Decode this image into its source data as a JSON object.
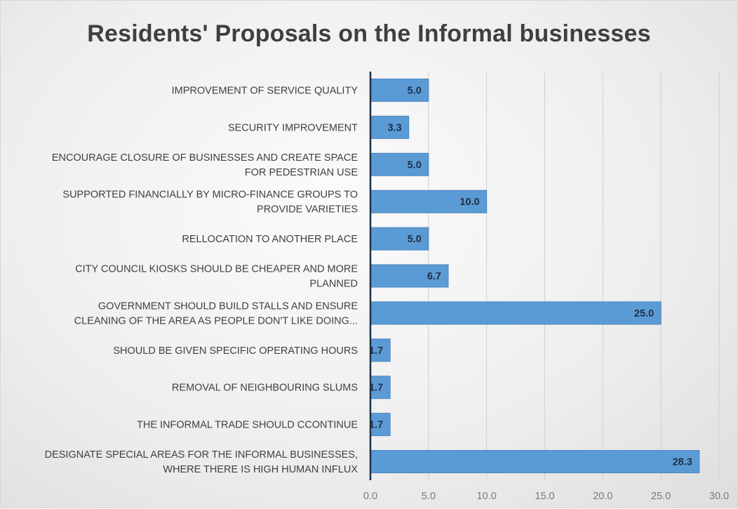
{
  "chart_data": {
    "type": "bar",
    "orientation": "horizontal",
    "title": "Residents' Proposals on the Informal businesses",
    "xlabel": "",
    "ylabel": "",
    "categories": [
      [
        "IMPROVEMENT OF SERVICE QUALITY"
      ],
      [
        "SECURITY IMPROVEMENT"
      ],
      [
        "ENCOURAGE CLOSURE OF BUSINESSES AND CREATE SPACE",
        "FOR PEDESTRIAN USE"
      ],
      [
        "SUPPORTED FINANCIALLY BY MICRO-FINANCE GROUPS TO",
        "PROVIDE VARIETIES"
      ],
      [
        "RELLOCATION TO ANOTHER PLACE"
      ],
      [
        "CITY COUNCIL KIOSKS SHOULD BE CHEAPER AND MORE",
        "PLANNED"
      ],
      [
        "GOVERNMENT SHOULD BUILD STALLS  AND ENSURE",
        "CLEANING OF THE AREA AS PEOPLE DON'T LIKE DOING..."
      ],
      [
        "SHOULD BE GIVEN SPECIFIC OPERATING HOURS"
      ],
      [
        "REMOVAL OF NEIGHBOURING SLUMS"
      ],
      [
        "THE INFORMAL TRADE SHOULD CCONTINUE"
      ],
      [
        "DESIGNATE SPECIAL AREAS FOR THE INFORMAL BUSINESSES,",
        "WHERE THERE IS HIGH HUMAN INFLUX"
      ]
    ],
    "values": [
      5.0,
      3.3,
      5.0,
      10.0,
      5.0,
      6.7,
      25.0,
      1.7,
      1.7,
      1.7,
      28.3
    ],
    "data_labels": [
      "5.0",
      "3.3",
      "5.0",
      "10.0",
      "5.0",
      "6.7",
      "25.0",
      "1.7",
      "1.7",
      "1.7",
      "28.3"
    ],
    "xlim": [
      0,
      30
    ],
    "xticks": [
      0,
      5,
      10,
      15,
      20,
      25,
      30
    ],
    "xtick_labels": [
      "0.0",
      "5.0",
      "10.0",
      "15.0",
      "20.0",
      "25.0",
      "30.0"
    ],
    "grid": "vertical",
    "legend": "none"
  },
  "colors": {
    "bar_fill": "#5b9bd5",
    "bar_edge": "#4a86bf",
    "gridline": "#d0d0d0",
    "axis_line": "#1f2f46",
    "title": "#3f3f3f"
  }
}
